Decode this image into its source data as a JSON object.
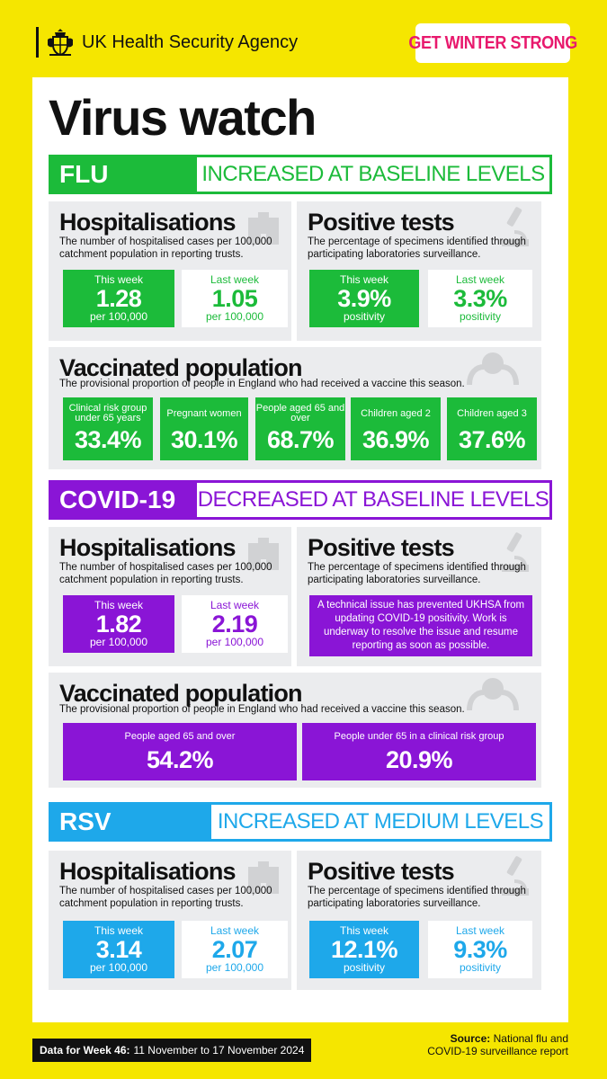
{
  "header": {
    "agency": "UK Health Security Agency",
    "campaign": "GET WINTER STRONG"
  },
  "title": "Virus watch",
  "colors": {
    "flu": "#1cbb3a",
    "covid": "#8a15d6",
    "rsv": "#1ea8ea",
    "background": "#f5e600"
  },
  "flu": {
    "name": "FLU",
    "status": "INCREASED AT BASELINE LEVELS",
    "hosp": {
      "title": "Hospitalisations",
      "desc": "The number of hospitalised cases per 100,000 catchment population in reporting trusts.",
      "this_label": "This week",
      "this_value": "1.28",
      "this_unit": "per 100,000",
      "last_label": "Last week",
      "last_value": "1.05",
      "last_unit": "per 100,000"
    },
    "tests": {
      "title": "Positive tests",
      "desc": "The percentage of specimens identified through participating laboratories surveillance.",
      "this_label": "This week",
      "this_value": "3.9%",
      "this_unit": "positivity",
      "last_label": "Last week",
      "last_value": "3.3%",
      "last_unit": "positivity"
    },
    "vacc": {
      "title": "Vaccinated population",
      "desc": "The provisional proportion of people in England who had received a vaccine this season.",
      "items": [
        {
          "label": "Clinical risk group under 65 years",
          "value": "33.4%"
        },
        {
          "label": "Pregnant women",
          "value": "30.1%"
        },
        {
          "label": "People aged 65 and over",
          "value": "68.7%"
        },
        {
          "label": "Children aged 2",
          "value": "36.9%"
        },
        {
          "label": "Children aged 3",
          "value": "37.6%"
        }
      ]
    }
  },
  "covid": {
    "name": "COVID-19",
    "status": "DECREASED AT BASELINE LEVELS",
    "hosp": {
      "title": "Hospitalisations",
      "desc": "The number of hospitalised cases per 100,000 catchment population in reporting trusts.",
      "this_label": "This week",
      "this_value": "1.82",
      "this_unit": "per 100,000",
      "last_label": "Last week",
      "last_value": "2.19",
      "last_unit": "per 100,000"
    },
    "tests": {
      "title": "Positive tests",
      "desc": "The percentage of specimens identified through participating laboratories surveillance.",
      "notice": "A technical issue has prevented UKHSA from updating COVID-19 positivity. Work is underway to resolve the issue and resume reporting as soon as possible."
    },
    "vacc": {
      "title": "Vaccinated population",
      "desc": "The provisional proportion of people in England who had received a vaccine this season.",
      "items": [
        {
          "label": "People aged 65 and over",
          "value": "54.2%"
        },
        {
          "label": "People under 65 in a clinical risk group",
          "value": "20.9%"
        }
      ]
    }
  },
  "rsv": {
    "name": "RSV",
    "status": "INCREASED AT MEDIUM LEVELS",
    "hosp": {
      "title": "Hospitalisations",
      "desc": "The number of hospitalised cases per 100,000 catchment population in reporting trusts.",
      "this_label": "This week",
      "this_value": "3.14",
      "this_unit": "per 100,000",
      "last_label": "Last week",
      "last_value": "2.07",
      "last_unit": "per 100,000"
    },
    "tests": {
      "title": "Positive tests",
      "desc": "The percentage of specimens identified through participating laboratories surveillance.",
      "this_label": "This week",
      "this_value": "12.1%",
      "this_unit": "positivity",
      "last_label": "Last week",
      "last_value": "9.3%",
      "last_unit": "positivity"
    }
  },
  "footer": {
    "data_label": "Data for Week 46:",
    "data_range": "11 November to 17 November 2024",
    "source_label": "Source:",
    "source_line1": "National flu and",
    "source_line2": "COVID-19 surveillance report"
  }
}
